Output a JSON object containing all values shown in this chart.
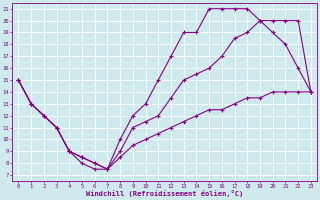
{
  "xlabel": "Windchill (Refroidissement éolien,°C)",
  "bg_color": "#ceeaec",
  "line_color": "#880088",
  "grid_color": "#ffffff",
  "xlim": [
    -0.5,
    23.5
  ],
  "ylim": [
    6.5,
    21.5
  ],
  "xticks": [
    0,
    1,
    2,
    3,
    4,
    5,
    6,
    7,
    8,
    9,
    10,
    11,
    12,
    13,
    14,
    15,
    16,
    17,
    18,
    19,
    20,
    21,
    22,
    23
  ],
  "yticks": [
    7,
    8,
    9,
    10,
    11,
    12,
    13,
    14,
    15,
    16,
    17,
    18,
    19,
    20,
    21
  ],
  "line1": {
    "x": [
      0,
      1,
      2,
      3,
      4,
      5,
      6,
      7,
      8,
      9,
      10,
      11,
      12,
      13,
      14,
      15,
      16,
      17,
      18,
      19,
      20,
      21,
      22,
      23
    ],
    "y": [
      15,
      13,
      12,
      11,
      9,
      8,
      7.5,
      7.5,
      10,
      12,
      13,
      15,
      17,
      19,
      19,
      21,
      21,
      21,
      21,
      20,
      19,
      18,
      16,
      14
    ]
  },
  "line2": {
    "x": [
      0,
      1,
      2,
      3,
      4,
      5,
      6,
      7,
      8,
      9,
      10,
      11,
      12,
      13,
      14,
      15,
      16,
      17,
      18,
      19,
      20,
      21,
      22,
      23
    ],
    "y": [
      15,
      13,
      12,
      11,
      9,
      8.5,
      8,
      7.5,
      9,
      11,
      11.5,
      12,
      13.5,
      15,
      15.5,
      16,
      17,
      18.5,
      19,
      20,
      20,
      20,
      20,
      14
    ]
  },
  "line3": {
    "x": [
      0,
      1,
      2,
      3,
      4,
      5,
      6,
      7,
      8,
      9,
      10,
      11,
      12,
      13,
      14,
      15,
      16,
      17,
      18,
      19,
      20,
      21,
      22,
      23
    ],
    "y": [
      15,
      13,
      12,
      11,
      9,
      8.5,
      8,
      7.5,
      8.5,
      9.5,
      10,
      10.5,
      11,
      11.5,
      12,
      12.5,
      12.5,
      13,
      13.5,
      13.5,
      14,
      14,
      14,
      14
    ]
  }
}
